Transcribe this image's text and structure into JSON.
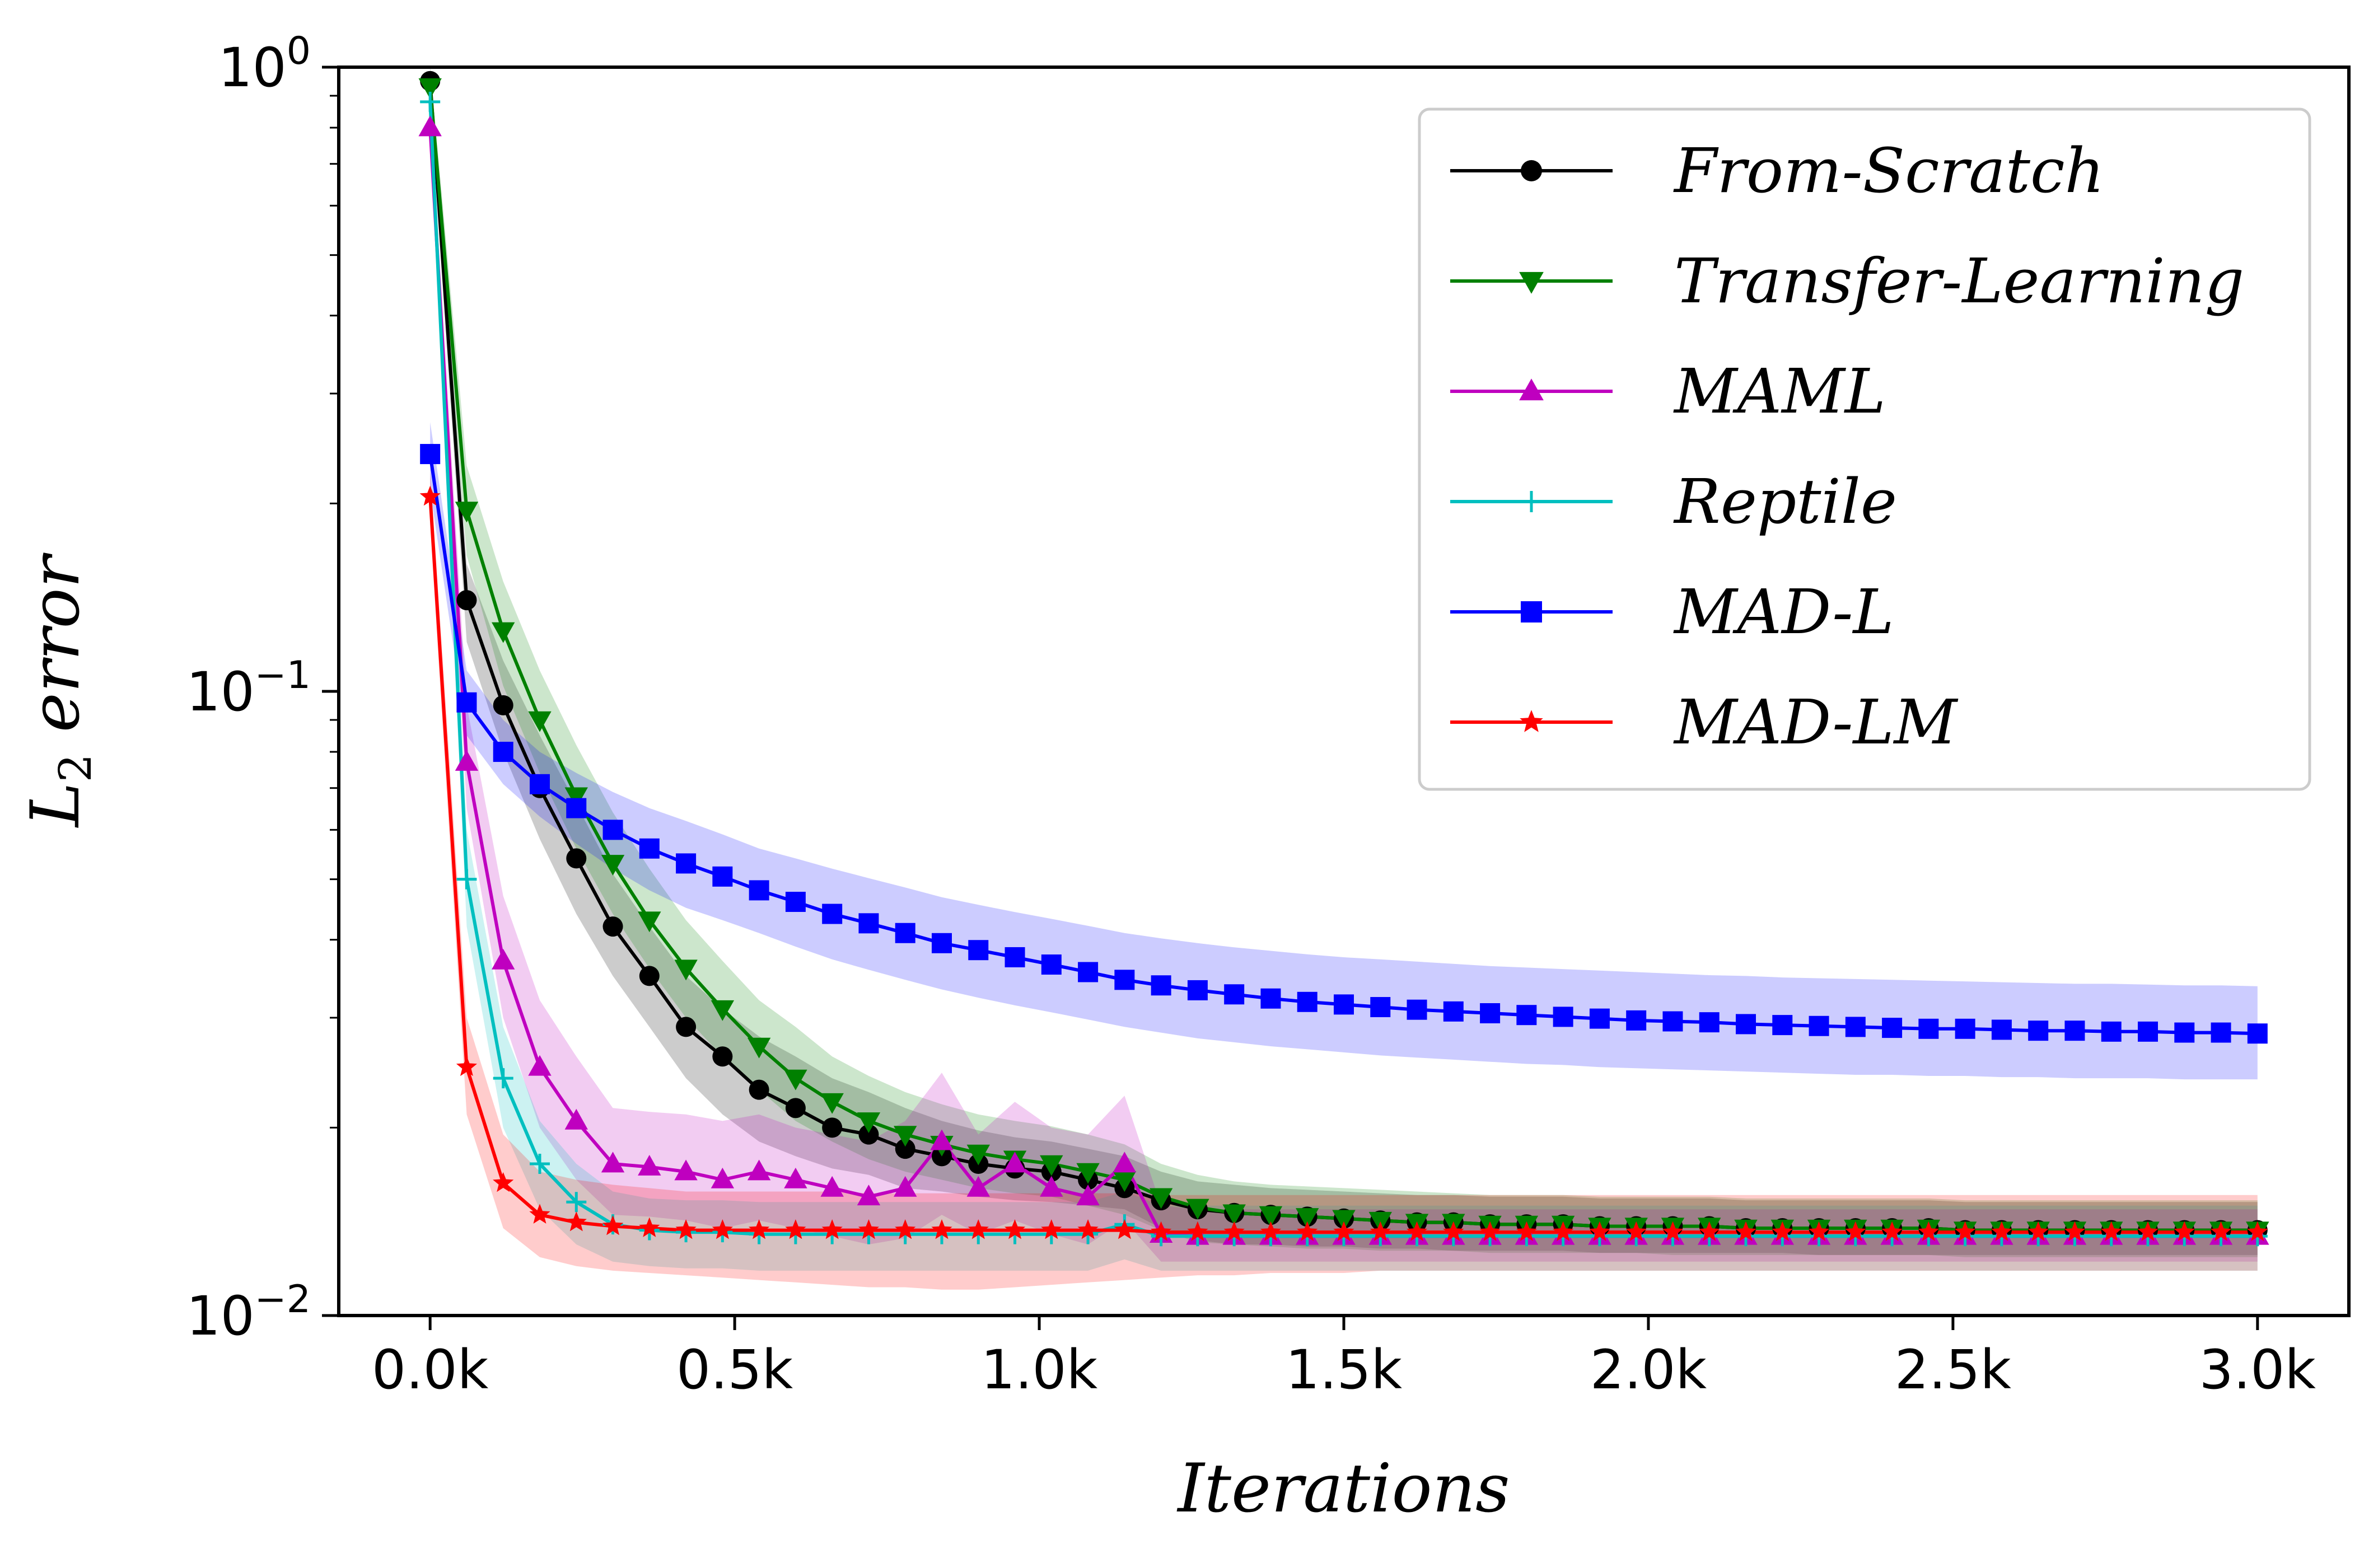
{
  "chart_data": {
    "type": "line",
    "title": "",
    "xlabel": "Iterations",
    "ylabel": "L2 error",
    "yscale": "log",
    "xlim": [
      -150,
      3150
    ],
    "ylim": [
      0.01,
      1.0
    ],
    "legend_position": "top-right",
    "x_ticks": [
      {
        "value": 0,
        "label": "0.0k"
      },
      {
        "value": 500,
        "label": "0.5k"
      },
      {
        "value": 1000,
        "label": "1.0k"
      },
      {
        "value": 1500,
        "label": "1.5k"
      },
      {
        "value": 2000,
        "label": "2.0k"
      },
      {
        "value": 2500,
        "label": "2.5k"
      },
      {
        "value": 3000,
        "label": "3.0k"
      }
    ],
    "y_ticks": [
      {
        "value": 1.0,
        "base": "10",
        "exp": "0"
      },
      {
        "value": 0.1,
        "base": "10",
        "exp": "−1"
      },
      {
        "value": 0.01,
        "base": "10",
        "exp": "−2"
      }
    ],
    "x": [
      0,
      60,
      120,
      180,
      240,
      300,
      360,
      420,
      480,
      540,
      600,
      660,
      720,
      780,
      840,
      900,
      960,
      1020,
      1080,
      1140,
      1200,
      1260,
      1320,
      1380,
      1440,
      1500,
      1560,
      1620,
      1680,
      1740,
      1800,
      1860,
      1920,
      1980,
      2040,
      2100,
      2160,
      2220,
      2280,
      2340,
      2400,
      2460,
      2520,
      2580,
      2640,
      2700,
      2760,
      2820,
      2880,
      2940,
      3000
    ],
    "series": [
      {
        "name": "From-Scratch",
        "color": "#000000",
        "marker": "circle",
        "values": [
          0.95,
          0.14,
          0.095,
          0.07,
          0.054,
          0.042,
          0.035,
          0.029,
          0.026,
          0.023,
          0.0215,
          0.02,
          0.0195,
          0.0185,
          0.018,
          0.0175,
          0.0172,
          0.017,
          0.0165,
          0.016,
          0.0153,
          0.0148,
          0.0146,
          0.0145,
          0.0144,
          0.0143,
          0.0142,
          0.0141,
          0.0141,
          0.014,
          0.014,
          0.014,
          0.0139,
          0.0139,
          0.0139,
          0.0139,
          0.0138,
          0.0138,
          0.0138,
          0.0138,
          0.0138,
          0.0138,
          0.0137,
          0.0137,
          0.0137,
          0.0137,
          0.0137,
          0.0137,
          0.0137,
          0.0137,
          0.0137
        ],
        "band_low": [
          0.88,
          0.12,
          0.08,
          0.058,
          0.044,
          0.035,
          0.029,
          0.024,
          0.021,
          0.019,
          0.018,
          0.0172,
          0.0168,
          0.016,
          0.0158,
          0.0155,
          0.0153,
          0.0152,
          0.015,
          0.0148,
          0.0138,
          0.0132,
          0.013,
          0.013,
          0.0129,
          0.0129,
          0.0128,
          0.0128,
          0.0127,
          0.0127,
          0.0127,
          0.0127,
          0.0126,
          0.0126,
          0.0126,
          0.0126,
          0.0126,
          0.0126,
          0.0125,
          0.0125,
          0.0125,
          0.0125,
          0.0125,
          0.0125,
          0.0125,
          0.0125,
          0.0125,
          0.0125,
          0.0125,
          0.0125,
          0.0125
        ],
        "band_high": [
          1.0,
          0.16,
          0.112,
          0.085,
          0.066,
          0.051,
          0.042,
          0.035,
          0.031,
          0.028,
          0.026,
          0.024,
          0.0228,
          0.0215,
          0.0205,
          0.0198,
          0.0193,
          0.019,
          0.0185,
          0.018,
          0.017,
          0.0164,
          0.0162,
          0.016,
          0.0159,
          0.0158,
          0.0157,
          0.0156,
          0.0156,
          0.0155,
          0.0155,
          0.0155,
          0.0154,
          0.0154,
          0.0154,
          0.0154,
          0.0153,
          0.0153,
          0.0153,
          0.0153,
          0.0153,
          0.0153,
          0.0152,
          0.0152,
          0.0152,
          0.0152,
          0.0152,
          0.0152,
          0.0152,
          0.0152,
          0.0152
        ]
      },
      {
        "name": "Transfer-Learning",
        "color": "#008000",
        "marker": "triangle-down",
        "values": [
          0.93,
          0.195,
          0.125,
          0.09,
          0.068,
          0.053,
          0.043,
          0.036,
          0.031,
          0.027,
          0.024,
          0.022,
          0.0205,
          0.0195,
          0.0188,
          0.0182,
          0.0178,
          0.0175,
          0.017,
          0.0165,
          0.0155,
          0.0149,
          0.0146,
          0.0145,
          0.0144,
          0.0143,
          0.0142,
          0.0141,
          0.0141,
          0.014,
          0.014,
          0.014,
          0.0139,
          0.0139,
          0.0139,
          0.0139,
          0.0138,
          0.0138,
          0.0138,
          0.0138,
          0.0138,
          0.0138,
          0.0137,
          0.0137,
          0.0137,
          0.0137,
          0.0137,
          0.0137,
          0.0137,
          0.0137,
          0.0137
        ],
        "band_low": [
          0.86,
          0.165,
          0.102,
          0.074,
          0.056,
          0.044,
          0.036,
          0.03,
          0.026,
          0.023,
          0.0205,
          0.019,
          0.0178,
          0.017,
          0.0165,
          0.016,
          0.0157,
          0.0155,
          0.015,
          0.0145,
          0.0137,
          0.0131,
          0.013,
          0.0129,
          0.0128,
          0.0128,
          0.0127,
          0.0127,
          0.0127,
          0.0126,
          0.0126,
          0.0126,
          0.0126,
          0.0126,
          0.0125,
          0.0125,
          0.0125,
          0.0125,
          0.0125,
          0.0125,
          0.0125,
          0.0125,
          0.0124,
          0.0124,
          0.0124,
          0.0124,
          0.0124,
          0.0124,
          0.0124,
          0.0124,
          0.0124
        ],
        "band_high": [
          1.0,
          0.23,
          0.15,
          0.108,
          0.082,
          0.064,
          0.052,
          0.043,
          0.037,
          0.032,
          0.029,
          0.026,
          0.0242,
          0.0228,
          0.0218,
          0.021,
          0.0205,
          0.0201,
          0.0195,
          0.0188,
          0.0175,
          0.0168,
          0.0164,
          0.0162,
          0.0161,
          0.016,
          0.0159,
          0.0158,
          0.0157,
          0.0156,
          0.0156,
          0.0156,
          0.0155,
          0.0155,
          0.0155,
          0.0155,
          0.0154,
          0.0154,
          0.0154,
          0.0154,
          0.0154,
          0.0154,
          0.0153,
          0.0153,
          0.0153,
          0.0153,
          0.0153,
          0.0153,
          0.0153,
          0.0153,
          0.0153
        ]
      },
      {
        "name": "MAML",
        "color": "#bf00bf",
        "marker": "triangle-up",
        "values": [
          0.8,
          0.077,
          0.037,
          0.025,
          0.0205,
          0.0175,
          0.0173,
          0.017,
          0.0165,
          0.017,
          0.0165,
          0.016,
          0.0155,
          0.016,
          0.019,
          0.016,
          0.0175,
          0.016,
          0.0155,
          0.0175,
          0.0135,
          0.0134,
          0.0134,
          0.0134,
          0.0134,
          0.0134,
          0.0134,
          0.0134,
          0.0134,
          0.0134,
          0.0134,
          0.0134,
          0.0134,
          0.0134,
          0.0134,
          0.0134,
          0.0134,
          0.0134,
          0.0134,
          0.0134,
          0.0134,
          0.0134,
          0.0134,
          0.0134,
          0.0134,
          0.0134,
          0.0134,
          0.0134,
          0.0134,
          0.0134,
          0.0134
        ],
        "band_low": [
          0.72,
          0.065,
          0.03,
          0.02,
          0.0165,
          0.0145,
          0.0144,
          0.0142,
          0.0138,
          0.0142,
          0.0138,
          0.0134,
          0.013,
          0.0133,
          0.0145,
          0.0135,
          0.0142,
          0.0135,
          0.013,
          0.0142,
          0.0122,
          0.0122,
          0.0122,
          0.0122,
          0.0122,
          0.0122,
          0.0122,
          0.0122,
          0.0122,
          0.0122,
          0.0122,
          0.0122,
          0.0122,
          0.0122,
          0.0122,
          0.0122,
          0.0122,
          0.0122,
          0.0122,
          0.0122,
          0.0122,
          0.0122,
          0.0122,
          0.0122,
          0.0122,
          0.0122,
          0.0122,
          0.0122,
          0.0122,
          0.0122,
          0.0122
        ],
        "band_high": [
          0.88,
          0.095,
          0.047,
          0.032,
          0.026,
          0.0215,
          0.0212,
          0.021,
          0.0205,
          0.021,
          0.02,
          0.0195,
          0.019,
          0.0205,
          0.0245,
          0.0195,
          0.022,
          0.02,
          0.0195,
          0.0225,
          0.015,
          0.0148,
          0.0148,
          0.0148,
          0.0148,
          0.0148,
          0.0148,
          0.0148,
          0.0148,
          0.0148,
          0.0148,
          0.0148,
          0.0148,
          0.0148,
          0.0148,
          0.0148,
          0.0148,
          0.0148,
          0.0148,
          0.0148,
          0.0148,
          0.0148,
          0.0148,
          0.0148,
          0.0148,
          0.0148,
          0.0148,
          0.0148,
          0.0148,
          0.0148,
          0.0148
        ]
      },
      {
        "name": "Reptile",
        "color": "#00bfbf",
        "marker": "plus",
        "values": [
          0.88,
          0.05,
          0.024,
          0.0175,
          0.0152,
          0.014,
          0.0137,
          0.0136,
          0.0136,
          0.0135,
          0.0135,
          0.0135,
          0.0135,
          0.0135,
          0.0135,
          0.0135,
          0.0135,
          0.0135,
          0.0135,
          0.014,
          0.0134,
          0.0134,
          0.0134,
          0.0134,
          0.0134,
          0.0134,
          0.0134,
          0.0134,
          0.0134,
          0.0134,
          0.0134,
          0.0134,
          0.0134,
          0.0134,
          0.0134,
          0.0134,
          0.0134,
          0.0134,
          0.0134,
          0.0134,
          0.0134,
          0.0134,
          0.0134,
          0.0134,
          0.0134,
          0.0134,
          0.0134,
          0.0134,
          0.0134,
          0.0134,
          0.0134
        ],
        "band_low": [
          0.8,
          0.042,
          0.02,
          0.0148,
          0.013,
          0.0122,
          0.012,
          0.0119,
          0.0119,
          0.0118,
          0.0118,
          0.0118,
          0.0118,
          0.0118,
          0.0118,
          0.0118,
          0.0118,
          0.0118,
          0.0118,
          0.0123,
          0.0118,
          0.0118,
          0.0118,
          0.0118,
          0.0118,
          0.0118,
          0.0118,
          0.0118,
          0.0118,
          0.0118,
          0.0118,
          0.0118,
          0.0118,
          0.0118,
          0.0118,
          0.0118,
          0.0118,
          0.0118,
          0.0118,
          0.0118,
          0.0118,
          0.0118,
          0.0118,
          0.0118,
          0.0118,
          0.0118,
          0.0118,
          0.0118,
          0.0118,
          0.0118,
          0.0118
        ],
        "band_high": [
          0.95,
          0.06,
          0.029,
          0.0205,
          0.0175,
          0.0158,
          0.0154,
          0.0153,
          0.0153,
          0.0152,
          0.0152,
          0.0152,
          0.0152,
          0.0152,
          0.0152,
          0.0152,
          0.0152,
          0.0152,
          0.0152,
          0.0158,
          0.015,
          0.015,
          0.015,
          0.015,
          0.015,
          0.015,
          0.015,
          0.015,
          0.015,
          0.015,
          0.015,
          0.015,
          0.015,
          0.015,
          0.015,
          0.015,
          0.015,
          0.015,
          0.015,
          0.015,
          0.015,
          0.015,
          0.015,
          0.015,
          0.015,
          0.015,
          0.015,
          0.015,
          0.015,
          0.015,
          0.015
        ]
      },
      {
        "name": "MAD-L",
        "color": "#0000ff",
        "marker": "square",
        "values": [
          0.24,
          0.096,
          0.08,
          0.071,
          0.065,
          0.06,
          0.056,
          0.053,
          0.0505,
          0.048,
          0.046,
          0.044,
          0.0425,
          0.041,
          0.0395,
          0.0385,
          0.0375,
          0.0365,
          0.0355,
          0.0345,
          0.0338,
          0.0332,
          0.0327,
          0.0322,
          0.0318,
          0.0315,
          0.0312,
          0.0309,
          0.0307,
          0.0305,
          0.0303,
          0.0301,
          0.0299,
          0.0297,
          0.0296,
          0.0295,
          0.0293,
          0.0292,
          0.0291,
          0.029,
          0.0289,
          0.0288,
          0.0288,
          0.0287,
          0.0286,
          0.0286,
          0.0285,
          0.0285,
          0.0284,
          0.0284,
          0.0283
        ],
        "band_low": [
          0.21,
          0.085,
          0.071,
          0.063,
          0.057,
          0.052,
          0.048,
          0.045,
          0.043,
          0.041,
          0.039,
          0.0372,
          0.0358,
          0.0345,
          0.0333,
          0.0323,
          0.0314,
          0.0306,
          0.0298,
          0.029,
          0.0284,
          0.0278,
          0.0274,
          0.027,
          0.0267,
          0.0264,
          0.0261,
          0.0259,
          0.0257,
          0.0255,
          0.0253,
          0.0252,
          0.025,
          0.0249,
          0.0248,
          0.0247,
          0.0246,
          0.0245,
          0.0244,
          0.0243,
          0.0243,
          0.0242,
          0.0242,
          0.0241,
          0.0241,
          0.024,
          0.024,
          0.024,
          0.0239,
          0.0239,
          0.0239
        ],
        "band_high": [
          0.27,
          0.108,
          0.09,
          0.08,
          0.074,
          0.069,
          0.065,
          0.062,
          0.059,
          0.056,
          0.054,
          0.052,
          0.0502,
          0.0485,
          0.0468,
          0.0455,
          0.0443,
          0.0432,
          0.0421,
          0.041,
          0.0402,
          0.0395,
          0.0389,
          0.0384,
          0.0379,
          0.0375,
          0.0372,
          0.0369,
          0.0366,
          0.0363,
          0.0361,
          0.0359,
          0.0357,
          0.0355,
          0.0353,
          0.0351,
          0.035,
          0.0348,
          0.0347,
          0.0346,
          0.0345,
          0.0344,
          0.0343,
          0.0342,
          0.0341,
          0.034,
          0.034,
          0.0339,
          0.0338,
          0.0338,
          0.0337
        ]
      },
      {
        "name": "MAD-LM",
        "color": "#ff0000",
        "marker": "star",
        "values": [
          0.205,
          0.025,
          0.0163,
          0.0145,
          0.0141,
          0.0139,
          0.0138,
          0.0137,
          0.0137,
          0.0137,
          0.0137,
          0.0137,
          0.0137,
          0.0137,
          0.0137,
          0.0137,
          0.0137,
          0.0137,
          0.0137,
          0.0137,
          0.0136,
          0.0136,
          0.0136,
          0.0136,
          0.0136,
          0.0136,
          0.0136,
          0.0136,
          0.0136,
          0.0136,
          0.0136,
          0.0136,
          0.0136,
          0.0136,
          0.0136,
          0.0136,
          0.0136,
          0.0136,
          0.0136,
          0.0136,
          0.0136,
          0.0136,
          0.0136,
          0.0136,
          0.0136,
          0.0136,
          0.0136,
          0.0136,
          0.0136,
          0.0136,
          0.0136
        ],
        "band_low": [
          0.185,
          0.021,
          0.0138,
          0.0124,
          0.012,
          0.0118,
          0.0117,
          0.0116,
          0.0115,
          0.0114,
          0.0113,
          0.0112,
          0.0111,
          0.0111,
          0.011,
          0.011,
          0.0111,
          0.0112,
          0.0113,
          0.0114,
          0.0115,
          0.0116,
          0.0116,
          0.0117,
          0.0117,
          0.0117,
          0.0118,
          0.0118,
          0.0118,
          0.0118,
          0.0118,
          0.0118,
          0.0118,
          0.0118,
          0.0118,
          0.0118,
          0.0118,
          0.0118,
          0.0118,
          0.0118,
          0.0118,
          0.0118,
          0.0118,
          0.0118,
          0.0118,
          0.0118,
          0.0118,
          0.0118,
          0.0118,
          0.0118,
          0.0118
        ],
        "band_high": [
          0.225,
          0.03,
          0.0195,
          0.017,
          0.0165,
          0.0162,
          0.016,
          0.0158,
          0.0158,
          0.0158,
          0.0158,
          0.0158,
          0.0157,
          0.0157,
          0.0157,
          0.0157,
          0.0157,
          0.0157,
          0.0157,
          0.0157,
          0.0156,
          0.0156,
          0.0156,
          0.0156,
          0.0156,
          0.0156,
          0.0156,
          0.0156,
          0.0156,
          0.0156,
          0.0156,
          0.0156,
          0.0156,
          0.0156,
          0.0156,
          0.0156,
          0.0156,
          0.0156,
          0.0156,
          0.0156,
          0.0156,
          0.0156,
          0.0156,
          0.0156,
          0.0156,
          0.0156,
          0.0156,
          0.0156,
          0.0156,
          0.0156,
          0.0156
        ]
      }
    ]
  }
}
